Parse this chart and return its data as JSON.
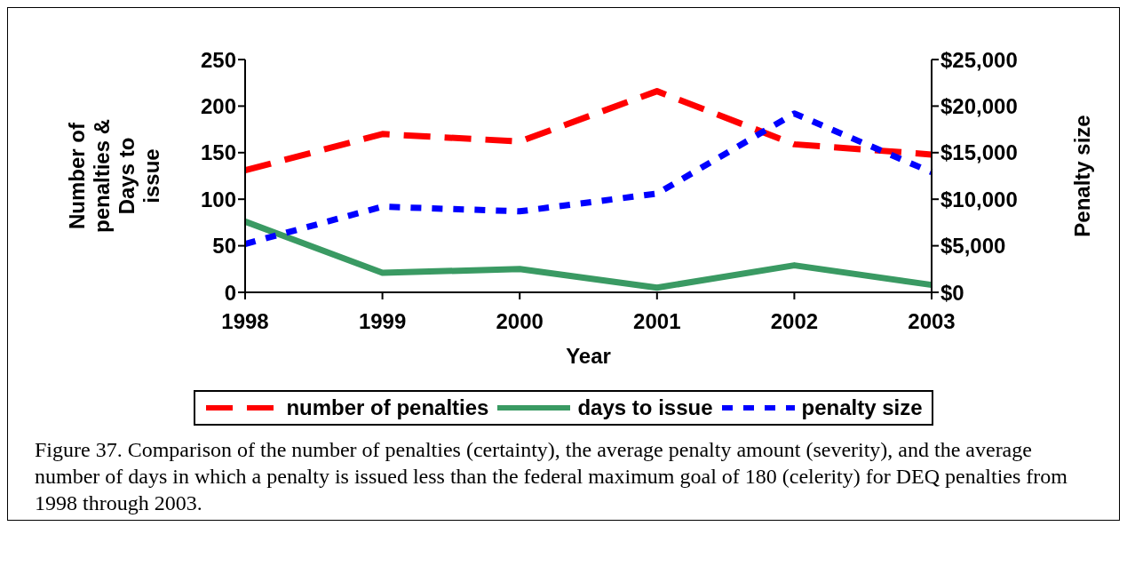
{
  "chart_data": {
    "type": "line",
    "categories": [
      "1998",
      "1999",
      "2000",
      "2001",
      "2002",
      "2003"
    ],
    "series": [
      {
        "name": "number of penalties",
        "color": "#ff0000",
        "line_style": "dashed",
        "values": [
          131,
          170,
          162,
          216,
          159,
          148
        ]
      },
      {
        "name": "days to issue",
        "color": "#3a9a63",
        "line_style": "solid",
        "values": [
          76,
          21,
          25,
          5,
          29,
          8
        ]
      },
      {
        "name": "penalty size",
        "color": "#0000ff",
        "line_style": "dotted",
        "axis": "y2",
        "values": [
          5200,
          9200,
          8700,
          10600,
          19200,
          12900
        ]
      }
    ],
    "xlabel": "Year",
    "ylabel": "Number of penalties & Days to issue",
    "y2label": "Penalty size",
    "ylim": [
      0,
      250
    ],
    "yticks": [
      0,
      50,
      100,
      150,
      200,
      250
    ],
    "y2lim": [
      0,
      25000
    ],
    "y2ticks": [
      {
        "value": 0,
        "label": "$0"
      },
      {
        "value": 5000,
        "label": "$5,000"
      },
      {
        "value": 10000,
        "label": "$10,000"
      },
      {
        "value": 15000,
        "label": "$15,000"
      },
      {
        "value": 20000,
        "label": "$20,000"
      },
      {
        "value": 25000,
        "label": "$25,000"
      }
    ],
    "grid": false,
    "legend": "bottom",
    "marker": "none",
    "annotations": [
      "Figure 37.  Comparison of the number of penalties (certainty), the average penalty amount (severity), and the average number of days in which a penalty is issued less than the federal maximum goal of 180 (celerity) for DEQ penalties from 1998 through 2003."
    ]
  }
}
